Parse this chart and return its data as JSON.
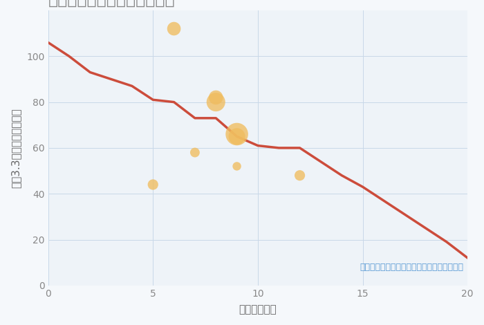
{
  "xlabel": "駅距離（分）",
  "ylabel": "坪（3.3㎡）単価（万円）",
  "line_x": [
    0,
    1,
    2,
    3,
    4,
    5,
    6,
    7,
    8,
    9,
    10,
    11,
    12,
    13,
    14,
    15,
    16,
    17,
    18,
    19,
    20
  ],
  "line_y": [
    106,
    100,
    93,
    90,
    87,
    81,
    80,
    73,
    73,
    65,
    61,
    60,
    60,
    54,
    48,
    43,
    37,
    31,
    25,
    19,
    12
  ],
  "line_color": "#cc4c3b",
  "line_width": 2.5,
  "scatter_x": [
    5,
    6,
    7,
    8,
    8,
    9,
    9,
    9,
    12
  ],
  "scatter_y": [
    44,
    112,
    58,
    82,
    80,
    66,
    65,
    52,
    48
  ],
  "scatter_size": [
    120,
    200,
    100,
    220,
    380,
    550,
    300,
    80,
    120
  ],
  "scatter_color": "#f0bc5e",
  "scatter_alpha": 0.78,
  "xlim": [
    0,
    20
  ],
  "ylim": [
    0,
    120
  ],
  "xticks": [
    0,
    5,
    10,
    15,
    20
  ],
  "yticks": [
    0,
    20,
    40,
    60,
    80,
    100
  ],
  "annotation": "円の大きさは、取引のあった物件面積を示す",
  "annotation_color": "#5b9bd5",
  "bg_color": "#eef3f8",
  "fig_bg_color": "#f5f8fb",
  "grid_color": "#c8d8e8",
  "title_color": "#888888",
  "title_fontsize": 17,
  "label_fontsize": 11,
  "tick_fontsize": 10,
  "annotation_fontsize": 9
}
